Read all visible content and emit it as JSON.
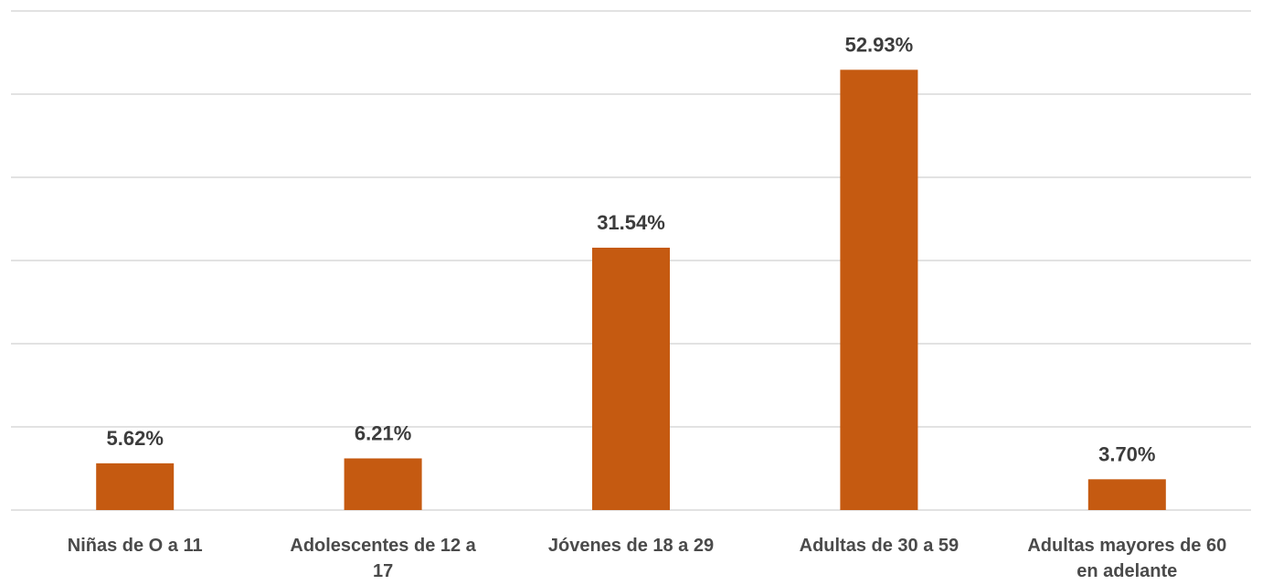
{
  "chart_data": {
    "type": "bar",
    "categories": [
      [
        "Niñas de O a 11"
      ],
      [
        "Adolescentes de 12 a",
        "17"
      ],
      [
        "Jóvenes de 18 a 29"
      ],
      [
        "Adultas de 30 a 59"
      ],
      [
        "Adultas mayores de 60",
        "en adelante"
      ]
    ],
    "values": [
      5.62,
      6.21,
      31.54,
      52.93,
      3.7
    ],
    "value_labels": [
      "5.62%",
      "6.21%",
      "31.54%",
      "52.93%",
      "3.70%"
    ],
    "title": "",
    "xlabel": "",
    "ylabel": "",
    "ylim": [
      0,
      60
    ],
    "grid": true,
    "bar_color": "#c55a11",
    "grid_color": "#d9d9d9"
  }
}
